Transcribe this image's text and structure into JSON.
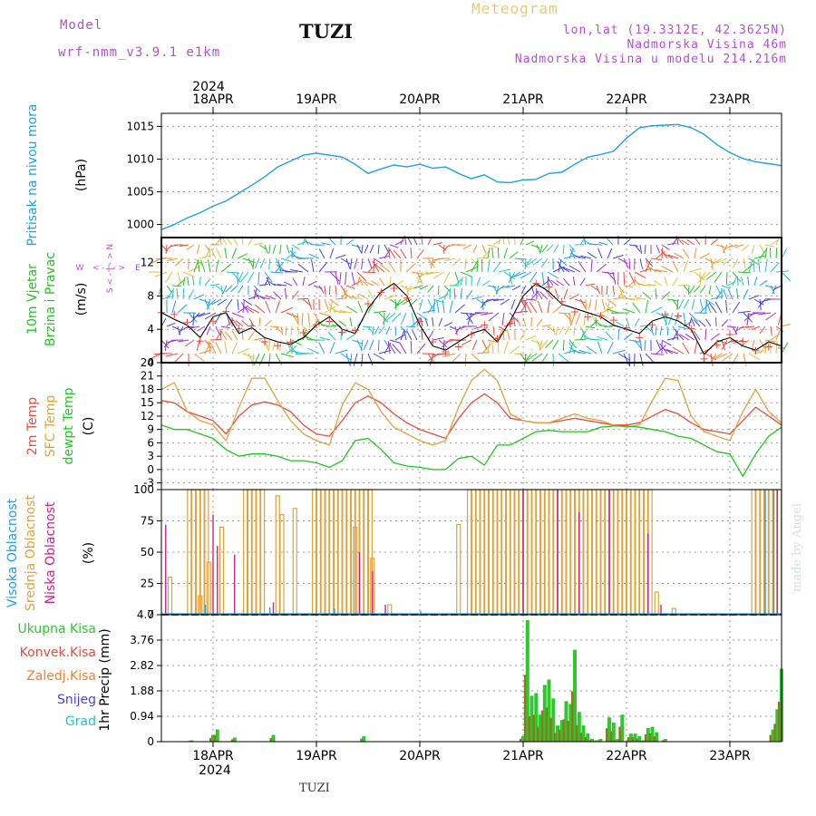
{
  "header": {
    "model_label": "Model",
    "model_name": "wrf-nmm_v3.9.1 e1km",
    "station": "TUZI",
    "title": "Meteogram",
    "lonlat": "lon,lat (19.3312E, 42.3625N)",
    "elevation": "Nadmorska Visina 46m",
    "model_elevation": "Nadmorska Visina u modelu 214.216m",
    "footer_station": "TUZI",
    "watermark": "made by Angel"
  },
  "time_axis": {
    "year": "2024",
    "days": [
      "18APR",
      "19APR",
      "20APR",
      "21APR",
      "22APR",
      "23APR"
    ],
    "range_hours": [
      0,
      144
    ]
  },
  "colors": {
    "pressure": "#1e9fe6",
    "temp2m": "#e84a3c",
    "sfc_temp": "#e0a23a",
    "dewpt": "#22c422",
    "high_cloud": "#1e9fe6",
    "mid_cloud": "#e0a23a",
    "low_cloud": "#d0208a",
    "precip_total": "#2bc92b",
    "precip_conv": "#e84a3c",
    "precip_frz": "#f08030",
    "snow": "#4444dd",
    "hail": "#22c4c4"
  },
  "chart_data": [
    {
      "type": "line",
      "name": "pressure",
      "axis_title": "Pritisak na nivou mora",
      "unit": "(hPa)",
      "yticks": [
        "1000",
        "1005",
        "1010",
        "1015"
      ],
      "ylim": [
        998,
        1017
      ],
      "x": [
        0,
        3,
        6,
        9,
        12,
        15,
        18,
        21,
        24,
        27,
        30,
        33,
        36,
        39,
        42,
        45,
        48,
        51,
        54,
        57,
        60,
        63,
        66,
        69,
        72,
        75,
        78,
        81,
        84,
        87,
        90,
        93,
        96,
        99,
        102,
        105,
        108,
        111,
        114,
        117,
        120,
        123,
        126,
        129,
        132,
        135,
        138,
        141,
        144
      ],
      "y": [
        999.2,
        1000.0,
        1001.0,
        1001.8,
        1002.8,
        1003.6,
        1004.8,
        1006.0,
        1007.3,
        1008.8,
        1009.7,
        1010.6,
        1010.9,
        1010.6,
        1010.3,
        1009.2,
        1007.8,
        1008.5,
        1009.1,
        1008.8,
        1009.2,
        1008.6,
        1008.8,
        1007.8,
        1007.0,
        1007.6,
        1006.5,
        1006.4,
        1006.8,
        1006.9,
        1007.8,
        1008.0,
        1009.2,
        1010.3,
        1010.7,
        1011.2,
        1013.2,
        1014.8,
        1015.1,
        1015.2,
        1015.3,
        1014.8,
        1013.8,
        1012.2,
        1011.0,
        1010.1,
        1009.6,
        1009.3,
        1009.0
      ],
      "series_color_key": "pressure"
    },
    {
      "type": "line",
      "name": "wind",
      "axis_title": [
        "10m Vjetar",
        "Brzina i Pravac"
      ],
      "unit": "(m/s)",
      "compass": [
        "N",
        "W",
        "E",
        "S"
      ],
      "yticks": [
        "0",
        "4",
        "8",
        "12"
      ],
      "ylim": [
        0,
        15
      ],
      "x": [
        0,
        3,
        6,
        9,
        12,
        15,
        18,
        21,
        24,
        27,
        30,
        33,
        36,
        39,
        42,
        45,
        48,
        51,
        54,
        57,
        60,
        63,
        66,
        69,
        72,
        75,
        78,
        81,
        84,
        87,
        90,
        93,
        96,
        99,
        102,
        105,
        108,
        111,
        114,
        117,
        120,
        123,
        126,
        129,
        132,
        135,
        138,
        141,
        144
      ],
      "y": [
        6.0,
        5.2,
        4.5,
        3.0,
        5.5,
        6.0,
        3.5,
        4.2,
        3.0,
        2.5,
        2.2,
        3.0,
        4.5,
        5.5,
        4.0,
        3.5,
        6.5,
        8.5,
        9.5,
        8.0,
        4.5,
        2.0,
        1.5,
        2.5,
        3.5,
        4.0,
        2.5,
        5.0,
        8.0,
        9.5,
        8.5,
        7.0,
        6.5,
        6.0,
        5.5,
        4.5,
        4.0,
        3.5,
        5.0,
        5.5,
        5.0,
        4.0,
        1.0,
        2.5,
        3.0,
        2.0,
        1.5,
        2.5,
        2.0
      ]
    },
    {
      "type": "line",
      "name": "temperature",
      "axis_title": [
        "2m Temp",
        "SFC Temp",
        "dewpt Temp"
      ],
      "unit": "(C)",
      "yticks": [
        "-3",
        "0",
        "3",
        "6",
        "9",
        "12",
        "15",
        "18",
        "21",
        "24"
      ],
      "ylim": [
        -4.5,
        24
      ],
      "x": [
        0,
        3,
        6,
        9,
        12,
        15,
        18,
        21,
        24,
        27,
        30,
        33,
        36,
        39,
        42,
        45,
        48,
        51,
        54,
        57,
        60,
        63,
        66,
        69,
        72,
        75,
        78,
        81,
        84,
        87,
        90,
        93,
        96,
        99,
        102,
        105,
        108,
        111,
        114,
        117,
        120,
        123,
        126,
        129,
        132,
        135,
        138,
        141,
        144
      ],
      "series": [
        {
          "name": "2m Temp",
          "color_key": "temp2m",
          "values": [
            15.5,
            15.0,
            13.0,
            12.0,
            11.0,
            8.0,
            12.0,
            14.5,
            15.2,
            14.5,
            13.0,
            10.0,
            8.0,
            7.5,
            11.0,
            15.0,
            16.5,
            15.0,
            12.5,
            10.5,
            9.0,
            8.0,
            7.0,
            11.5,
            15.0,
            17.0,
            15.0,
            11.5,
            11.0,
            10.5,
            10.5,
            11.0,
            11.5,
            11.0,
            10.5,
            10.0,
            10.0,
            10.5,
            12.0,
            13.5,
            12.5,
            10.5,
            9.0,
            8.5,
            8.0,
            11.0,
            14.0,
            12.0,
            10.0
          ]
        },
        {
          "name": "SFC Temp",
          "color_key": "sfc_temp",
          "values": [
            18.0,
            19.5,
            13.0,
            11.0,
            10.0,
            6.5,
            14.0,
            20.5,
            20.5,
            15.5,
            11.0,
            8.0,
            6.5,
            5.5,
            14.5,
            19.5,
            18.0,
            13.0,
            9.5,
            8.0,
            6.5,
            5.5,
            6.5,
            14.0,
            20.0,
            22.5,
            20.0,
            12.5,
            11.0,
            10.5,
            10.5,
            11.5,
            12.5,
            11.5,
            11.0,
            10.0,
            9.5,
            10.0,
            15.5,
            20.5,
            20.0,
            12.0,
            8.5,
            7.5,
            6.5,
            13.0,
            18.0,
            13.0,
            10.5
          ]
        },
        {
          "name": "dewpt Temp",
          "color_key": "dewpt",
          "values": [
            10.0,
            9.0,
            9.0,
            8.0,
            7.0,
            4.5,
            3.0,
            3.5,
            3.5,
            3.0,
            2.0,
            2.0,
            1.5,
            0.5,
            2.0,
            6.5,
            7.0,
            4.5,
            1.5,
            0.8,
            0.5,
            0.0,
            0.0,
            2.5,
            3.0,
            1.0,
            5.5,
            5.5,
            7.0,
            8.5,
            8.8,
            8.5,
            8.5,
            8.5,
            9.5,
            9.8,
            9.8,
            9.5,
            9.0,
            8.5,
            7.5,
            7.0,
            5.5,
            4.0,
            3.5,
            -1.5,
            3.5,
            7.5,
            9.5
          ]
        }
      ]
    },
    {
      "type": "bar",
      "name": "clouds",
      "axis_title": [
        "Visoka Oblacnost",
        "Srednja Oblacnost",
        "Niska Oblacnost"
      ],
      "unit": "(%)",
      "yticks": [
        "0",
        "25",
        "50",
        "75",
        "100"
      ],
      "ylim": [
        0,
        100
      ],
      "series": [
        {
          "name": "Visoka Oblacnost",
          "color_key": "high_cloud",
          "bars": [
            [
              0,
              0
            ],
            [
              10,
              8
            ],
            [
              25,
              6
            ],
            [
              40,
              5
            ],
            [
              60,
              3
            ],
            [
              80,
              2
            ],
            [
              100,
              0
            ],
            [
              140,
              100
            ],
            [
              142,
              100
            ]
          ]
        },
        {
          "name": "Srednja Oblacnost",
          "color_key": "mid_cloud",
          "ranges": [
            [
              6.5,
              10.5,
              100
            ],
            [
              19.5,
              23.5,
              100
            ],
            [
              35.5,
              48.5,
              100
            ],
            [
              71.5,
              113.5,
              100
            ],
            [
              137.5,
              143.5,
              100
            ]
          ],
          "extras": [
            [
              2,
              30
            ],
            [
              9,
              15
            ],
            [
              11,
              42
            ],
            [
              14,
              70
            ],
            [
              27,
              95
            ],
            [
              28,
              80
            ],
            [
              31,
              85
            ],
            [
              45,
              70
            ],
            [
              49,
              45
            ],
            [
              53,
              8
            ],
            [
              69,
              72
            ],
            [
              115,
              18
            ],
            [
              119,
              5
            ]
          ]
        },
        {
          "name": "Niska Oblacnost",
          "color_key": "low_cloud",
          "bars": [
            [
              1,
              72
            ],
            [
              12,
              80
            ],
            [
              13,
              55
            ],
            [
              17,
              48
            ],
            [
              26,
              10
            ],
            [
              46,
              50
            ],
            [
              49,
              35
            ],
            [
              52,
              8
            ],
            [
              84,
              100
            ],
            [
              92,
              100
            ],
            [
              97,
              82
            ],
            [
              104,
              100
            ],
            [
              113,
              65
            ],
            [
              116,
              8
            ],
            [
              143,
              100
            ]
          ]
        }
      ]
    },
    {
      "type": "bar",
      "name": "precip",
      "axis_title": "1hr Precip",
      "unit": "(mm)",
      "legend": [
        "Ukupna Kisa",
        "Konvek.Kisa",
        "Zaledj.Kisa",
        "Snijeg",
        "Grad"
      ],
      "yticks": [
        "0",
        "0.94",
        "1.88",
        "2.82",
        "3.76",
        "4.7"
      ],
      "ylim": [
        0,
        4.7
      ],
      "x": [
        7,
        12,
        13,
        17,
        26,
        47,
        84,
        85,
        86,
        87,
        88,
        89,
        90,
        91,
        92,
        93,
        94,
        95,
        96,
        97,
        98,
        99,
        100,
        101,
        102,
        104,
        105,
        106,
        107,
        109,
        110,
        111,
        112,
        113,
        114,
        115,
        117,
        142,
        143,
        144
      ],
      "values": [
        0.05,
        0.25,
        0.45,
        0.15,
        0.25,
        0.2,
        0.2,
        4.5,
        1.7,
        1.8,
        1.0,
        2.1,
        2.3,
        1.6,
        0.6,
        0.8,
        1.5,
        1.4,
        3.4,
        1.1,
        0.6,
        0.3,
        0.1,
        0.05,
        0.1,
        0.9,
        0.7,
        0.1,
        1.0,
        0.3,
        0.3,
        0.2,
        0.05,
        0.5,
        0.55,
        0.35,
        0.1,
        0.45,
        1.2,
        2.7
      ]
    }
  ]
}
